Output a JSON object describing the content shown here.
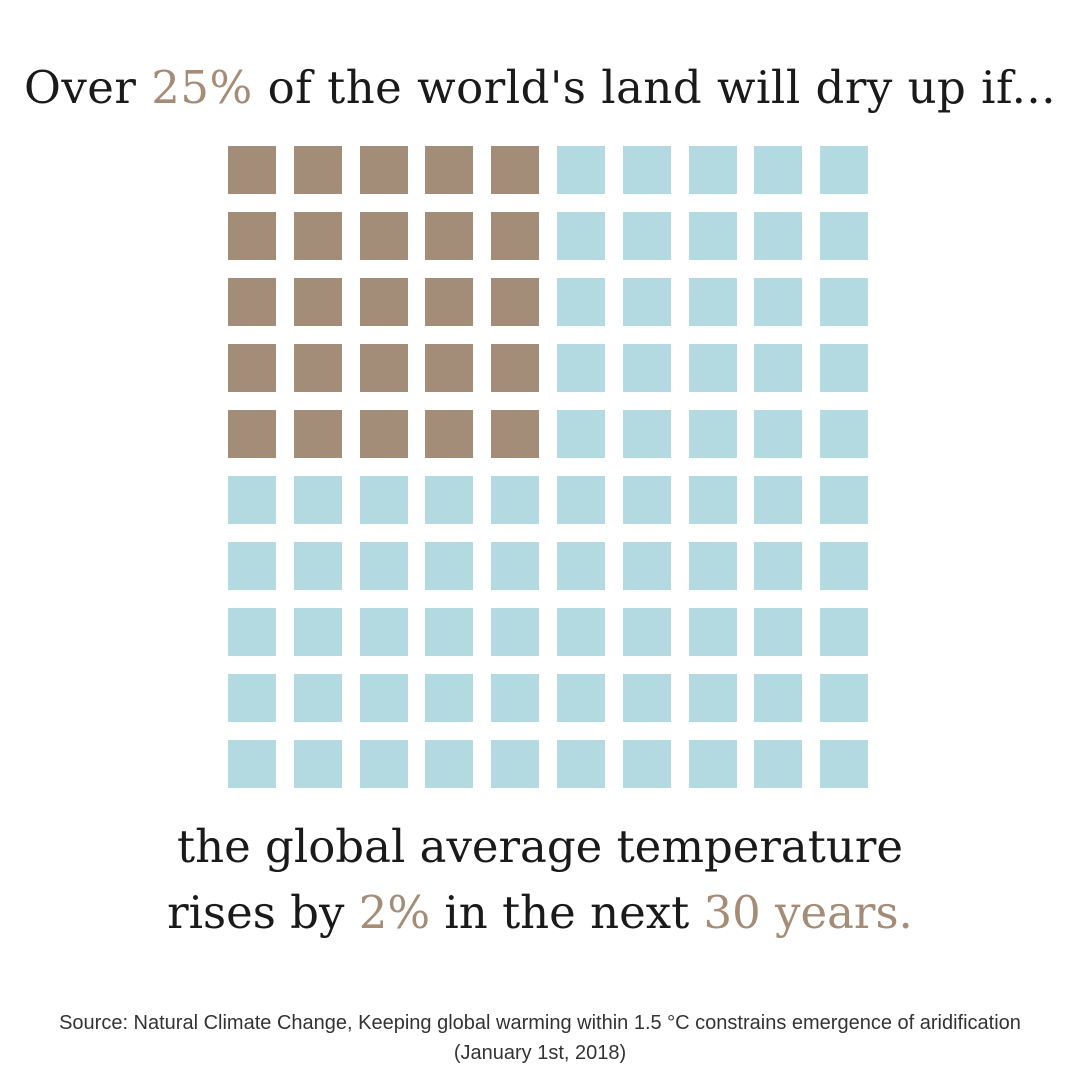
{
  "headline": {
    "prefix": "Over ",
    "highlight": "25%",
    "suffix": " of the world's land will dry up if..."
  },
  "caption": {
    "line1": "the global average temperature",
    "line2_prefix": "rises by ",
    "line2_highlight1": "2%",
    "line2_middle": " in the next ",
    "line2_highlight2": "30 years."
  },
  "source": "Source: Natural Climate Change, Keeping global warming within 1.5 °C constrains emergence of aridification (January 1st, 2018)",
  "colors": {
    "accent": "#a58c77",
    "highlighted_cell": "#a38c78",
    "base_cell": "#b3dae0",
    "text": "#1a1a1a"
  },
  "chart_data": {
    "type": "waffle",
    "rows": 10,
    "columns": 10,
    "total_units": 100,
    "highlighted_units": 25,
    "highlighted_block": {
      "rows": 5,
      "columns": 5,
      "corner": "top-left"
    }
  }
}
